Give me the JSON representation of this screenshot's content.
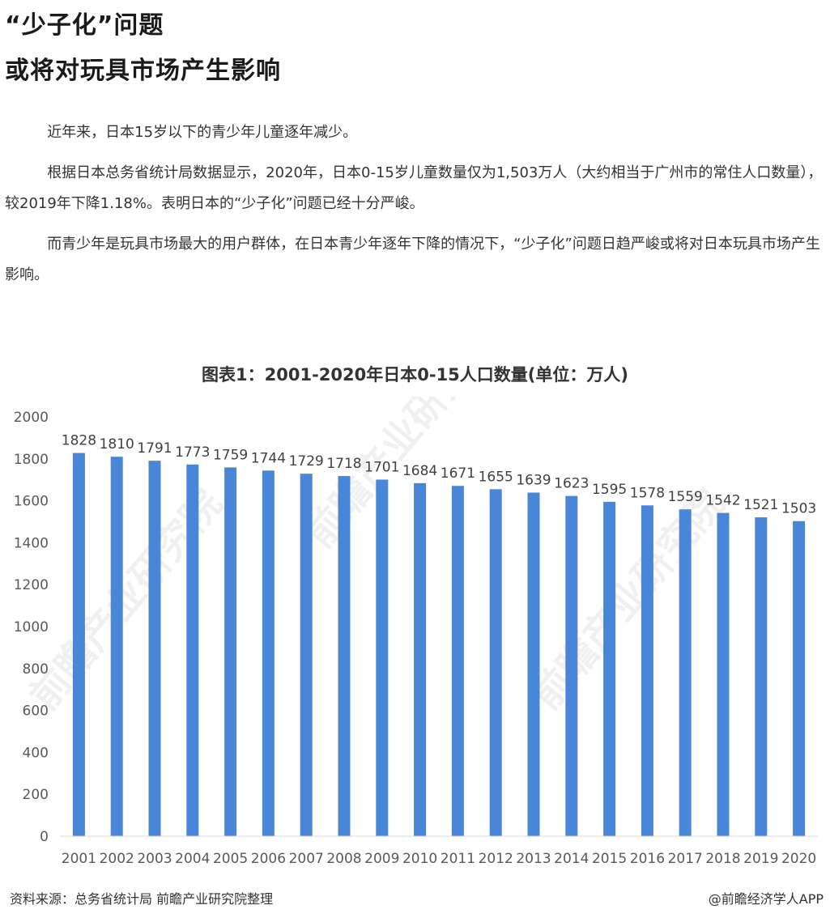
{
  "article": {
    "heading_line1": "“少子化”问题",
    "heading_line2": "或将对玩具市场产生影响",
    "paragraphs": [
      "近年来，日本15岁以下的青少年儿童逐年减少。",
      "根据日本总务省统计局数据显示，2020年，日本0-15岁儿童数量仅为1,503万人（大约相当于广州市的常住人口数量），较2019年下降1.18%。表明日本的“少子化”问题已经十分严峻。",
      "而青少年是玩具市场最大的用户群体，在日本青少年逐年下降的情况下，“少子化”问题日趋严峻或将对日本玩具市场产生影响。"
    ]
  },
  "chart_data": {
    "type": "bar",
    "title": "图表1：2001-2020年日本0-15人口数量(单位：万人)",
    "categories": [
      "2001",
      "2002",
      "2003",
      "2004",
      "2005",
      "2006",
      "2007",
      "2008",
      "2009",
      "2010",
      "2011",
      "2012",
      "2013",
      "2014",
      "2015",
      "2016",
      "2017",
      "2018",
      "2019",
      "2020"
    ],
    "values": [
      1828,
      1810,
      1791,
      1773,
      1759,
      1744,
      1729,
      1718,
      1701,
      1684,
      1671,
      1655,
      1639,
      1623,
      1595,
      1578,
      1559,
      1542,
      1521,
      1503
    ],
    "ylim": [
      0,
      2000
    ],
    "yticks": [
      0,
      200,
      400,
      600,
      800,
      1000,
      1200,
      1400,
      1600,
      1800,
      2000
    ],
    "xlabel": "",
    "ylabel": "",
    "bar_color": "#4a86d8",
    "grid": false,
    "data_labels": true,
    "watermark": "前瞻产业研究院"
  },
  "footer": {
    "source": "资料来源：总务省统计局 前瞻产业研究院整理",
    "credit": "@前瞻经济学人APP"
  }
}
